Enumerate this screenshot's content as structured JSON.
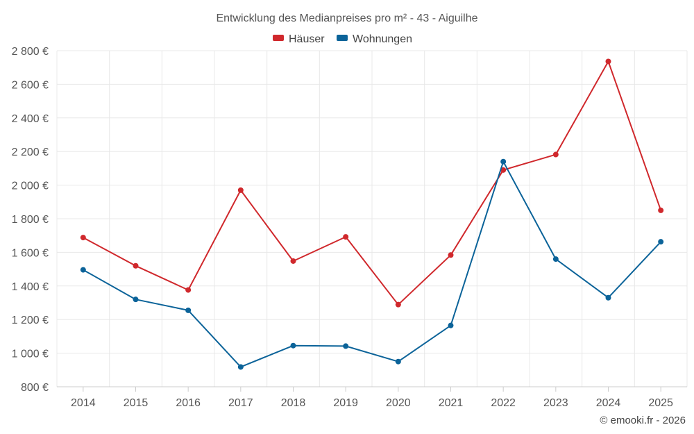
{
  "chart_data": {
    "type": "line",
    "title": "Entwicklung des Medianpreises pro m² - 43 - Aiguilhe",
    "categories": [
      "2014",
      "2015",
      "2016",
      "2017",
      "2018",
      "2019",
      "2020",
      "2021",
      "2022",
      "2023",
      "2024",
      "2025"
    ],
    "series": [
      {
        "name": "Häuser",
        "color": "#d0282c",
        "values": [
          1688,
          1520,
          1376,
          1970,
          1548,
          1692,
          1289,
          1584,
          2090,
          2182,
          2736,
          1850
        ]
      },
      {
        "name": "Wohnungen",
        "color": "#0b6399",
        "values": [
          1496,
          1320,
          1255,
          918,
          1045,
          1042,
          950,
          1165,
          2140,
          1560,
          1330,
          1663
        ]
      }
    ],
    "ylim": [
      800,
      2800
    ],
    "yticks": [
      800,
      1000,
      1200,
      1400,
      1600,
      1800,
      2000,
      2200,
      2400,
      2600,
      2800
    ],
    "ytick_labels": [
      "800 €",
      "1 000 €",
      "1 200 €",
      "1 400 €",
      "1 600 €",
      "1 800 €",
      "2 000 €",
      "2 200 €",
      "2 400 €",
      "2 600 €",
      "2 800 €"
    ],
    "xlabel": "",
    "ylabel": "",
    "grid": true,
    "legend_position": "top-center"
  },
  "credit": "© emooki.fr - 2026"
}
